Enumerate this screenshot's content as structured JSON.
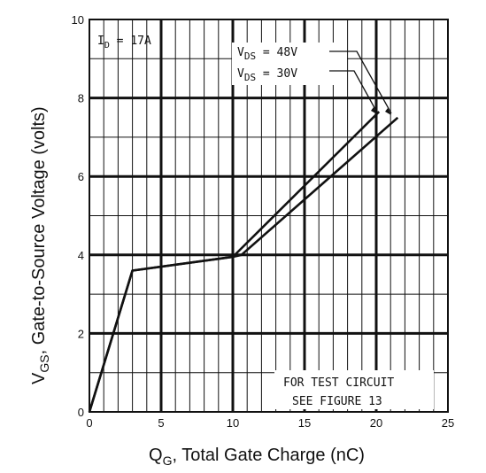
{
  "chart_data": {
    "type": "line",
    "xlabel": "Q",
    "xlabel_sub": "G",
    "xlabel_rest": ", Total Gate Charge (nC)",
    "ylabel": "V",
    "ylabel_sub": "GS",
    "ylabel_rest": ", Gate-to-Source Voltage (volts)",
    "xlim": [
      0,
      25
    ],
    "ylim": [
      0,
      10
    ],
    "x_ticks": [
      "0",
      "5",
      "10",
      "15",
      "20",
      "25"
    ],
    "y_ticks": [
      "0",
      "2",
      "4",
      "6",
      "8",
      "10"
    ],
    "grid": true,
    "series": [
      {
        "name": "V DS = 48V",
        "points": [
          [
            0,
            0
          ],
          [
            3,
            3.6
          ],
          [
            10,
            3.95
          ],
          [
            10.6,
            4.0
          ],
          [
            21.5,
            7.5
          ]
        ]
      },
      {
        "name": "V DS = 30V",
        "points": [
          [
            0,
            0
          ],
          [
            3,
            3.6
          ],
          [
            10,
            3.95
          ],
          [
            20.2,
            7.65
          ]
        ]
      }
    ],
    "annotations": {
      "id_label": "I",
      "id_sub": "D",
      "id_value": " = 17A",
      "vds48_pre": "V",
      "vds48_sub": "DS",
      "vds48_value": " =  48V",
      "vds30_pre": "V",
      "vds30_sub": "DS",
      "vds30_value": " =  30V",
      "note_line1": "FOR TEST CIRCUIT",
      "note_line2": "SEE FIGURE 13"
    },
    "colors": {
      "line": "#111111",
      "grid": "#111111",
      "background": "#ffffff"
    }
  }
}
